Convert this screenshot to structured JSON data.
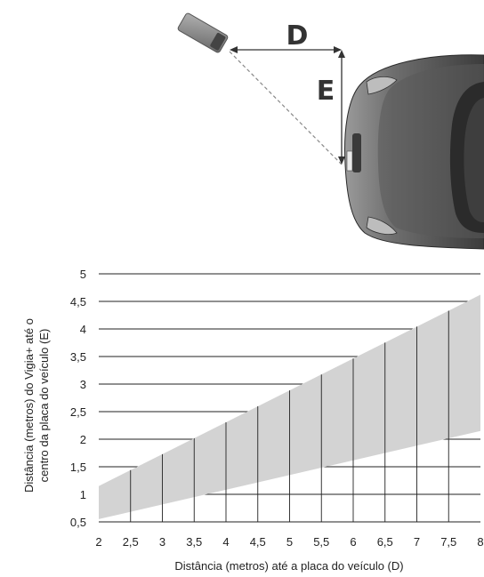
{
  "diagram": {
    "label_d": "D",
    "label_e": "E"
  },
  "chart_data": {
    "type": "area",
    "x": [
      2,
      8
    ],
    "series": [
      {
        "values_low": [
          0.55,
          2.15
        ],
        "values_high": [
          1.15,
          4.62
        ]
      }
    ],
    "xticks": [
      "2",
      "2,5",
      "3",
      "3,5",
      "4",
      "4,5",
      "5",
      "5,5",
      "6",
      "6,5",
      "7",
      "7,5",
      "8"
    ],
    "xtick_values": [
      2,
      2.5,
      3,
      3.5,
      4,
      4.5,
      5,
      5.5,
      6,
      6.5,
      7,
      7.5,
      8
    ],
    "yticks": [
      "0,5",
      "1",
      "1,5",
      "2",
      "2,5",
      "3",
      "3,5",
      "4",
      "4,5",
      "5"
    ],
    "ytick_values": [
      0.5,
      1,
      1.5,
      2,
      2.5,
      3,
      3.5,
      4,
      4.5,
      5
    ],
    "xlabel": "Distância (metros) até a placa do veículo (D)",
    "ylabel_line1": "Distância (metros) do Vigia+ até o",
    "ylabel_line2": "centro da placa do veículo (E)",
    "xlim": [
      2,
      8
    ],
    "ylim": [
      0.5,
      5
    ],
    "fill_color": "#d3d3d3",
    "grid": true
  }
}
